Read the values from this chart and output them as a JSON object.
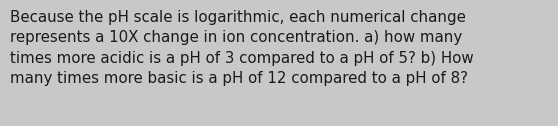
{
  "text": "Because the pH scale is logarithmic, each numerical change\nrepresents a 10X change in ion concentration. a) how many\ntimes more acidic is a pH of 3 compared to a pH of 5? b) How\nmany times more basic is a pH of 12 compared to a pH of 8?",
  "background_color": "#c8c8c8",
  "text_color": "#1a1a1a",
  "font_size": 10.8,
  "font_family": "DejaVu Sans",
  "fig_width": 5.58,
  "fig_height": 1.26,
  "dpi": 100
}
